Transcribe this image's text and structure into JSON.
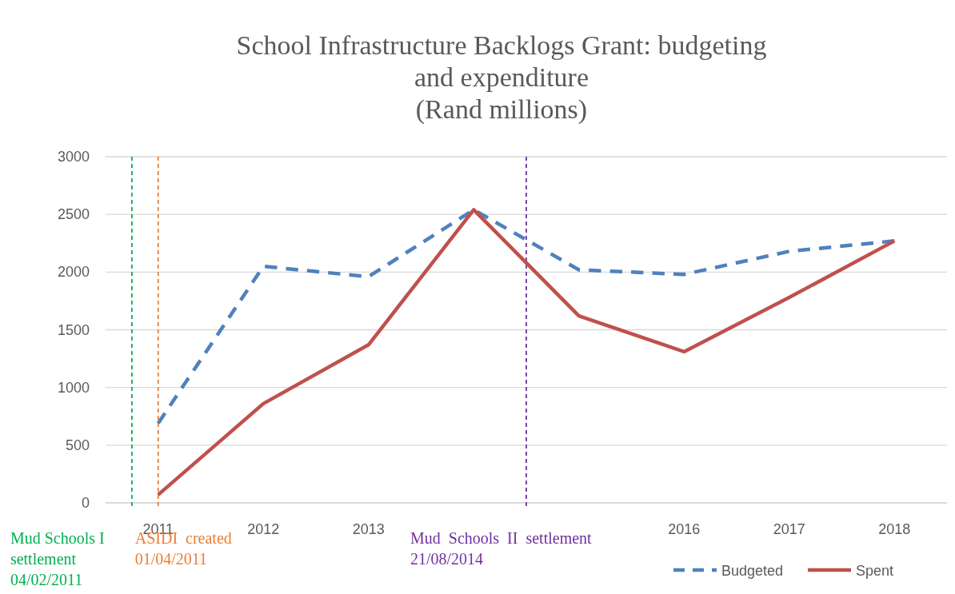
{
  "chart_data": {
    "type": "line",
    "title": "School Infrastructure Backlogs Grant: budgeting and expenditure",
    "subtitle": "(Rand millions)",
    "x": [
      2011,
      2012,
      2013,
      2014,
      2015,
      2016,
      2017,
      2018
    ],
    "xlim": [
      2010.5,
      2018.5
    ],
    "xticks": [
      2011,
      2012,
      2013,
      2016,
      2017,
      2018
    ],
    "series": [
      {
        "name": "Budgeted",
        "color": "#4f81bd",
        "line_style": "dashed",
        "values": [
          690,
          2050,
          1960,
          2540,
          2020,
          1980,
          2180,
          2270
        ]
      },
      {
        "name": "Spent",
        "color": "#c0504d",
        "line_style": "solid",
        "values": [
          70,
          860,
          1370,
          2540,
          1620,
          1310,
          1780,
          2270
        ]
      }
    ],
    "ylim": [
      0,
      3000
    ],
    "yticks": [
      0,
      500,
      1000,
      1500,
      2000,
      2500,
      3000
    ],
    "grid": "y",
    "legend": "bottom right",
    "marker": "none",
    "ref_lines": [
      {
        "axis": "x",
        "value": 2010.75,
        "label": "Mud Schools I\nsettlement\n04/02/2011",
        "color": "#00b050",
        "line_style": "dashed"
      },
      {
        "axis": "x",
        "value": 2011,
        "label": "ASIDI  created\n01/04/2011",
        "color": "#ed7d31",
        "line_style": "dashed"
      },
      {
        "axis": "x",
        "value": 2014.5,
        "label": "Mud  Schools  II  settlement\n21/08/2014",
        "color": "#7030a0",
        "line_style": "dashed"
      }
    ]
  }
}
